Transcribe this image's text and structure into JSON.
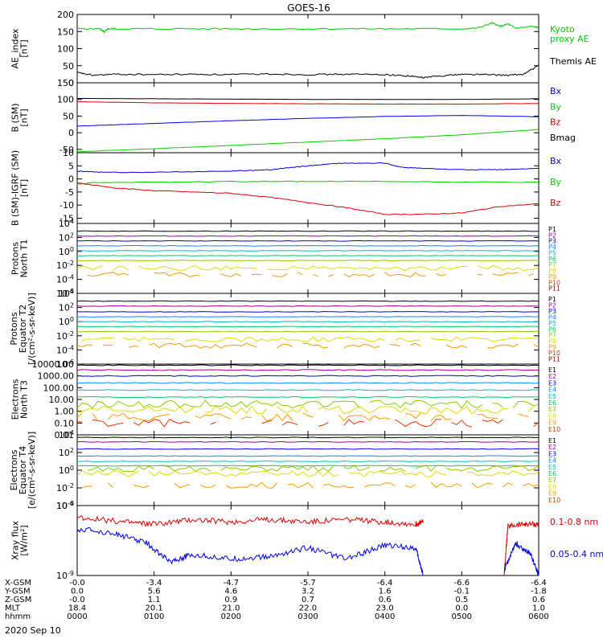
{
  "title": "GOES-16",
  "date_label": "2020 Sep 10",
  "colors": {
    "black": "#000000",
    "green": "#00cc00",
    "blue": "#0000ee",
    "red": "#dd0000",
    "P": [
      "#000000",
      "#990099",
      "#0000ee",
      "#1188ff",
      "#00bbcc",
      "#00cc66",
      "#88cc00",
      "#dddd00",
      "#ff9900",
      "#ee3300",
      "#aa0000"
    ],
    "E": [
      "#000000",
      "#990099",
      "#0000ee",
      "#1188ff",
      "#00bbcc",
      "#00cc66",
      "#88cc00",
      "#dddd00",
      "#ff9900",
      "#ee3300"
    ]
  },
  "ephemeris": {
    "rows": [
      {
        "label": "X-GSM",
        "values": [
          "-0.0",
          "-3.4",
          "-4.7",
          "-5.7",
          "-6.4",
          "-6.6",
          "-6.4"
        ]
      },
      {
        "label": "Y-GSM",
        "values": [
          "0.0",
          "5.6",
          "4.6",
          "3.2",
          "1.6",
          "-0.1",
          "-1.8"
        ]
      },
      {
        "label": "Z-GSM",
        "values": [
          "-0.0",
          "1.1",
          "0.9",
          "0.7",
          "0.6",
          "0.5",
          "0.6"
        ]
      },
      {
        "label": "MLT",
        "values": [
          "18.4",
          "20.1",
          "21.0",
          "22.0",
          "23.0",
          "0.0",
          "1.0"
        ]
      },
      {
        "label": "hhmm",
        "values": [
          "0000",
          "0100",
          "0200",
          "0300",
          "0400",
          "0500",
          "0600"
        ]
      }
    ]
  },
  "chart_data": [
    {
      "type": "line",
      "id": "ae",
      "ylabel": [
        "AE_index",
        "[nT]"
      ],
      "ylim": [
        0,
        200
      ],
      "yticks": [
        "200",
        "150",
        "100",
        "50",
        "0"
      ],
      "ytick_values": [
        200,
        150,
        100,
        50,
        0
      ],
      "log": false,
      "series": [
        {
          "name": "Kyoto proxy AE",
          "color": "green",
          "x": [
            0,
            0.3,
            0.35,
            0.4,
            0.5,
            1,
            2,
            3,
            4,
            5,
            5.2,
            5.4,
            5.5,
            5.6,
            5.7,
            5.9,
            6
          ],
          "y": [
            158,
            158,
            148,
            158,
            158,
            158,
            158,
            158,
            158,
            158,
            160,
            175,
            165,
            172,
            160,
            165,
            162
          ]
        },
        {
          "name": "Themis AE",
          "color": "black",
          "x": [
            0,
            0.2,
            0.5,
            1,
            1.5,
            2,
            2.5,
            3,
            3.5,
            4,
            4.3,
            4.5,
            4.7,
            5,
            5.3,
            5.6,
            5.8,
            6
          ],
          "y": [
            30,
            22,
            25,
            24,
            25,
            24,
            26,
            24,
            25,
            24,
            20,
            15,
            20,
            25,
            24,
            22,
            25,
            50
          ]
        }
      ],
      "legend": [
        {
          "text": [
            "Kyoto",
            "proxy AE"
          ],
          "color": "green"
        },
        {
          "text": [
            "Themis AE"
          ],
          "color": "black"
        }
      ]
    },
    {
      "type": "line",
      "id": "bsm",
      "ylabel": [
        "B (SM)",
        "[nT]"
      ],
      "ylim": [
        -60,
        150
      ],
      "yticks": [
        "150",
        "100",
        "50",
        "0",
        "-50"
      ],
      "ytick_values": [
        150,
        100,
        50,
        0,
        -50
      ],
      "log": false,
      "series": [
        {
          "name": "Bmag",
          "color": "black",
          "x": [
            0,
            1,
            2,
            3,
            4,
            5,
            6
          ],
          "y": [
            103,
            102,
            101,
            100,
            100,
            100,
            102
          ]
        },
        {
          "name": "Bz",
          "color": "red",
          "x": [
            0,
            1,
            2,
            3,
            4,
            5,
            6
          ],
          "y": [
            93,
            90,
            88,
            87,
            86,
            86,
            88
          ]
        },
        {
          "name": "Bx",
          "color": "blue",
          "x": [
            0,
            1,
            2,
            3,
            4,
            5,
            6
          ],
          "y": [
            20,
            28,
            36,
            43,
            49,
            52,
            48
          ]
        },
        {
          "name": "By",
          "color": "green",
          "x": [
            0,
            1,
            2,
            3,
            4,
            5,
            6
          ],
          "y": [
            -57,
            -48,
            -38,
            -28,
            -18,
            -6,
            10
          ]
        }
      ],
      "legend": [
        {
          "text": [
            "Bx"
          ],
          "color": "blue"
        },
        {
          "text": [
            "By"
          ],
          "color": "green"
        },
        {
          "text": [
            "Bz"
          ],
          "color": "red"
        },
        {
          "text": [
            "Bmag"
          ],
          "color": "black"
        }
      ]
    },
    {
      "type": "line",
      "id": "bigrf",
      "ylabel": [
        "B (SM)-IGRF (SM)",
        "[nT]"
      ],
      "ylim": [
        -17,
        10
      ],
      "yticks": [
        "10",
        "5",
        "0",
        "-5",
        "-10",
        "-15"
      ],
      "ytick_values": [
        10,
        5,
        0,
        -5,
        -10,
        -15
      ],
      "log": false,
      "series": [
        {
          "name": "Bx",
          "color": "blue",
          "x": [
            0,
            0.3,
            1,
            2,
            2.5,
            3,
            3.4,
            4,
            4.2,
            4.5,
            5,
            5.5,
            6
          ],
          "y": [
            3,
            2.5,
            2.5,
            3,
            3.5,
            5,
            6,
            6,
            4.5,
            4,
            3.5,
            3.5,
            4
          ]
        },
        {
          "name": "By",
          "color": "green",
          "x": [
            0,
            0.2,
            1,
            2,
            3,
            4,
            5,
            6
          ],
          "y": [
            -2,
            -1.5,
            -1.2,
            -1,
            -1,
            -1,
            -1.2,
            -1.3
          ]
        },
        {
          "name": "Bz",
          "color": "red",
          "x": [
            0,
            0.5,
            1,
            1.5,
            2,
            2.5,
            3,
            3.5,
            4,
            4.5,
            5,
            5.5,
            6
          ],
          "y": [
            -1.5,
            -3.5,
            -4.5,
            -5,
            -5.5,
            -7,
            -9,
            -11,
            -13.5,
            -13.5,
            -13,
            -10.5,
            -9.5
          ]
        }
      ],
      "legend": [
        {
          "text": [
            "Bx"
          ],
          "color": "blue"
        },
        {
          "text": [
            "By"
          ],
          "color": "green"
        },
        {
          "text": [
            "Bz"
          ],
          "color": "red"
        }
      ]
    },
    {
      "type": "line",
      "id": "pn",
      "ylabel": [
        "Protons",
        "North T1"
      ],
      "ylim": [
        -6,
        4
      ],
      "log": true,
      "yticks": [
        "10^4",
        "10^2",
        "10^0",
        "10^-2",
        "10^-4",
        "10^-6"
      ],
      "ytick_values": [
        4,
        2,
        0,
        -2,
        -4,
        -6
      ],
      "channel_levels": [
        2.9,
        2.2,
        1.5,
        0.8,
        0.1,
        -0.6,
        -1.3,
        -2.4,
        -3.3,
        null,
        null
      ],
      "channels": [
        "P1",
        "P2",
        "P3",
        "P4",
        "P5",
        "P6",
        "P7",
        "P8",
        "P9",
        "P10",
        "P11"
      ]
    },
    {
      "type": "line",
      "id": "pe",
      "ylabel": [
        "Protons",
        "Equator T2",
        "[/(cm²-s-sr-keV)]"
      ],
      "ylim": [
        -6,
        4
      ],
      "log": true,
      "yticks": [
        "10^4",
        "10^2",
        "10^0",
        "10^-2",
        "10^-4",
        "10^-6"
      ],
      "ytick_values": [
        4,
        2,
        0,
        -2,
        -4,
        -6
      ],
      "channel_levels": [
        2.9,
        2.2,
        1.4,
        0.7,
        0.0,
        -0.7,
        -1.4,
        -2.5,
        -3.4,
        null,
        null
      ],
      "channels": [
        "P1",
        "P2",
        "P3",
        "P4",
        "P5",
        "P6",
        "P7",
        "P8",
        "P9",
        "P10",
        "P11"
      ]
    },
    {
      "type": "line",
      "id": "en",
      "ylabel": [
        "Electrons",
        "North T3"
      ],
      "ylim": [
        -2,
        4
      ],
      "log": true,
      "yticks": [
        "10000.00",
        "1000.00",
        "100.00",
        "10.00",
        "1.00",
        "0.10",
        "0.01"
      ],
      "ytick_values": [
        4,
        3,
        2,
        1,
        0,
        -1,
        -2
      ],
      "channel_levels": [
        3.9,
        3.5,
        3.0,
        2.4,
        1.8,
        1.2,
        0.6,
        0.1,
        -0.5,
        -1.0
      ],
      "channels": [
        "E1",
        "E2",
        "E3",
        "E4",
        "E5",
        "E6",
        "E7",
        "E8",
        "E9",
        "E10"
      ]
    },
    {
      "type": "line",
      "id": "ee",
      "ylabel": [
        "Electrons",
        "Equator T4",
        "[e/(cm²-s-sr-keV)]"
      ],
      "ylim": [
        -4,
        4
      ],
      "log": true,
      "yticks": [
        "10^4",
        "10^2",
        "10^0",
        "10^-2",
        "10^-4"
      ],
      "ytick_values": [
        4,
        2,
        0,
        -2,
        -4
      ],
      "channel_levels": [
        3.7,
        3.2,
        2.4,
        1.6,
        1.0,
        0.5,
        0.2,
        -0.4,
        -1.7,
        null
      ],
      "channels": [
        "E1",
        "E2",
        "E3",
        "E4",
        "E5",
        "E6",
        "E7",
        "E8",
        "E9",
        "E10"
      ]
    },
    {
      "type": "line",
      "id": "xray",
      "ylabel": [
        "Xray flux",
        "[W/m²]"
      ],
      "ylim": [
        -9,
        -6
      ],
      "log": true,
      "yticks": [
        "10^-6",
        "10^-9"
      ],
      "ytick_values": [
        -6,
        -9
      ],
      "series": [
        {
          "name": "0.1-0.8 nm",
          "color": "red",
          "segments": [
            {
              "x": [
                0,
                0.6,
                1,
                1.5,
                2,
                2.5,
                3,
                3.5,
                4,
                4.4,
                4.5
              ],
              "y": [
                -6.5,
                -6.7,
                -6.8,
                -6.6,
                -6.7,
                -6.6,
                -6.7,
                -6.6,
                -6.7,
                -6.8,
                -6.7
              ]
            },
            {
              "x": [
                5.55,
                5.6,
                5.8,
                6
              ],
              "y": [
                -9,
                -6.9,
                -6.8,
                -6.8
              ]
            }
          ]
        },
        {
          "name": "0.05-0.4 nm",
          "color": "blue",
          "segments": [
            {
              "x": [
                0,
                0.5,
                0.9,
                1.2,
                1.5,
                2,
                2.5,
                3,
                3.5,
                4,
                4.4,
                4.5
              ],
              "y": [
                -7.0,
                -7.2,
                -7.6,
                -8.4,
                -8.1,
                -8.3,
                -8.2,
                -7.8,
                -8.3,
                -7.7,
                -7.8,
                -9
              ]
            },
            {
              "x": [
                5.55,
                5.7,
                5.9,
                6
              ],
              "y": [
                -8.8,
                -7.6,
                -8.1,
                -9
              ]
            }
          ]
        }
      ],
      "legend": [
        {
          "text": [
            "0.1-0.8 nm"
          ],
          "color": "red"
        },
        {
          "text": [
            "0.05-0.4 nm"
          ],
          "color": "blue"
        }
      ]
    }
  ]
}
